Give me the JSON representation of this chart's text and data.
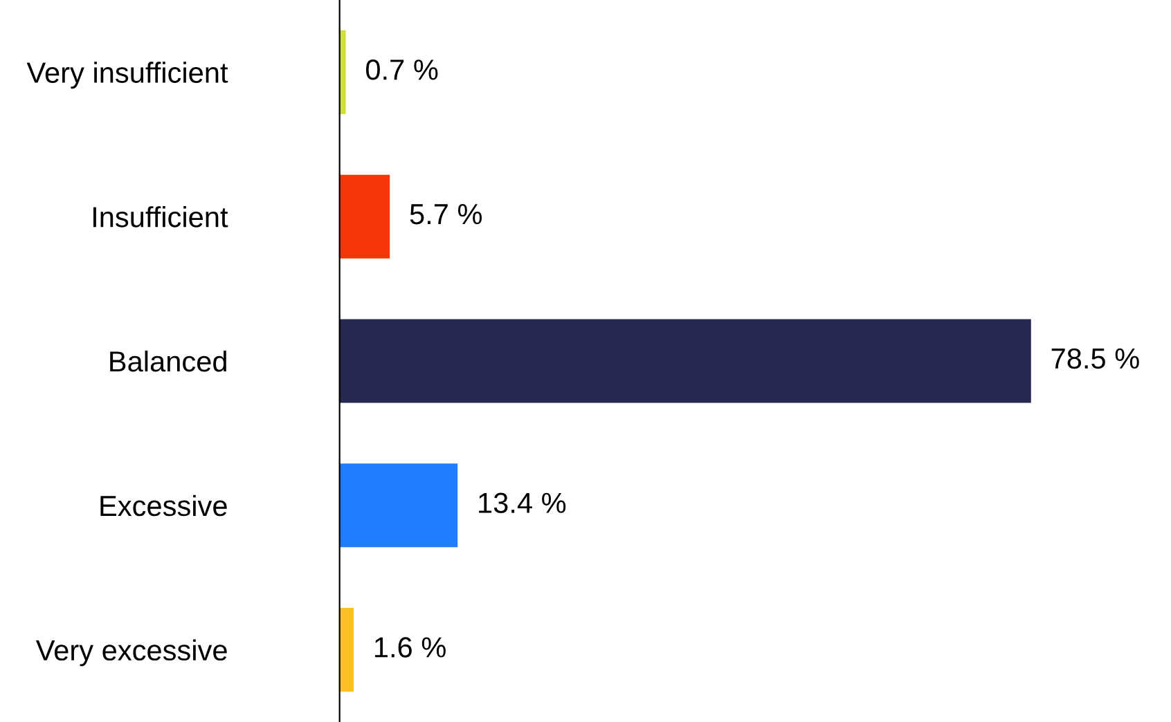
{
  "chart_data": {
    "type": "bar",
    "orientation": "horizontal",
    "categories": [
      "Very insufficient",
      "Insufficient",
      "Balanced",
      "Excessive",
      "Very excessive"
    ],
    "values": [
      0.7,
      5.7,
      78.5,
      13.4,
      1.6
    ],
    "colors": [
      "#cfe03a",
      "#f63508",
      "#262852",
      "#1f7dff",
      "#fcbf24"
    ],
    "value_labels": [
      "0.7 %",
      "5.7 %",
      "78.5 %",
      "13.4 %",
      "1.6 %"
    ],
    "grid": false,
    "legend": false
  }
}
